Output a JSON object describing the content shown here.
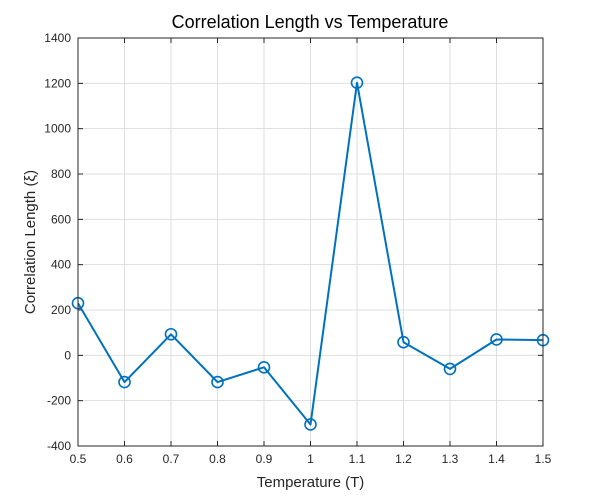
{
  "chart_data": {
    "type": "line",
    "title": "Correlation Length vs Temperature",
    "xlabel": "Temperature (T)",
    "ylabel": "Correlation Length (ξ)",
    "xlim": [
      0.5,
      1.5
    ],
    "ylim": [
      -400,
      1400
    ],
    "xticks": [
      0.5,
      0.6,
      0.7,
      0.8,
      0.9,
      1.0,
      1.1,
      1.2,
      1.3,
      1.4,
      1.5
    ],
    "xtick_labels": [
      "0.5",
      "0.6",
      "0.7",
      "0.8",
      "0.9",
      "1",
      "1.1",
      "1.2",
      "1.3",
      "1.4",
      "1.5"
    ],
    "yticks": [
      -400,
      -200,
      0,
      200,
      400,
      600,
      800,
      1000,
      1200,
      1400
    ],
    "ytick_labels": [
      "-400",
      "-200",
      "0",
      "200",
      "400",
      "600",
      "800",
      "1000",
      "1200",
      "1400"
    ],
    "grid": true,
    "marker": "circle",
    "color": "#0072bd",
    "x": [
      0.5,
      0.6,
      0.7,
      0.8,
      0.9,
      1.0,
      1.1,
      1.2,
      1.3,
      1.4,
      1.5
    ],
    "y": [
      230,
      -118,
      93,
      -118,
      -53,
      -305,
      1203,
      58,
      -60,
      70,
      67
    ]
  }
}
